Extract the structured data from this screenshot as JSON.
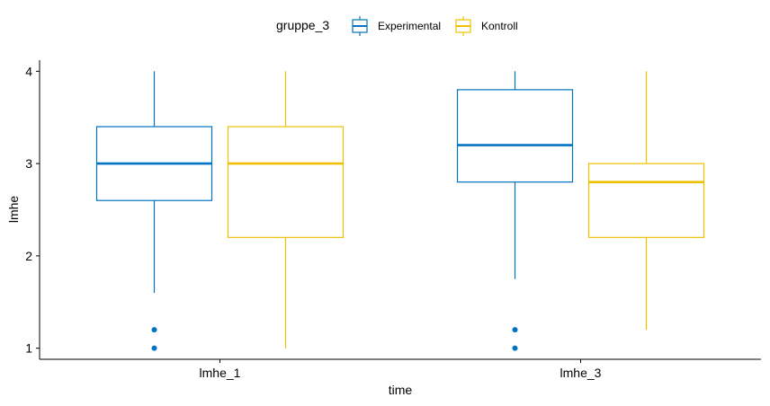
{
  "chart_data": {
    "type": "box",
    "xlabel": "time",
    "ylabel": "lmhe",
    "categories": [
      "lmhe_1",
      "lmhe_3"
    ],
    "yticks": [
      1,
      2,
      3,
      4
    ],
    "ylim": [
      0.88,
      4.12
    ],
    "legend": {
      "title": "gruppe_3",
      "position": "top"
    },
    "grid": false,
    "series": [
      {
        "name": "Experimental",
        "color": "#0073C2",
        "boxes": [
          {
            "whisker_low": 1.6,
            "q1": 2.6,
            "median": 3.0,
            "q3": 3.4,
            "whisker_high": 4.0,
            "outliers": [
              1.0,
              1.2
            ]
          },
          {
            "whisker_low": 1.75,
            "q1": 2.8,
            "median": 3.2,
            "q3": 3.8,
            "whisker_high": 4.0,
            "outliers": [
              1.0,
              1.2
            ]
          }
        ]
      },
      {
        "name": "Kontroll",
        "color": "#EFC000",
        "boxes": [
          {
            "whisker_low": 1.0,
            "q1": 2.2,
            "median": 3.0,
            "q3": 3.4,
            "whisker_high": 4.0,
            "outliers": []
          },
          {
            "whisker_low": 1.2,
            "q1": 2.2,
            "median": 2.8,
            "q3": 3.0,
            "whisker_high": 4.0,
            "outliers": []
          }
        ]
      }
    ]
  }
}
